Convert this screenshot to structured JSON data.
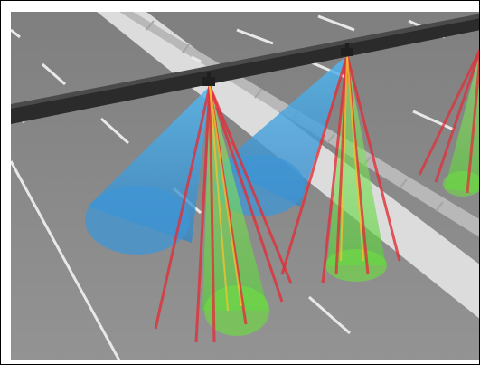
{
  "scene": {
    "description_visible_text": "",
    "colors": {
      "road": "#8c8c8c",
      "lane_marking": "#e8e8e8",
      "median": "#d9d9d9",
      "gantry_beam": "#2b2b2b",
      "cone_blue": "#4aa3df",
      "cone_green": "#7be04a",
      "ray_red": "#e0303a",
      "ray_yellow": "#f2c230"
    },
    "icons": [
      "gantry-beam",
      "sensor-unit-left",
      "sensor-unit-right",
      "sensor-unit-far-right"
    ]
  }
}
